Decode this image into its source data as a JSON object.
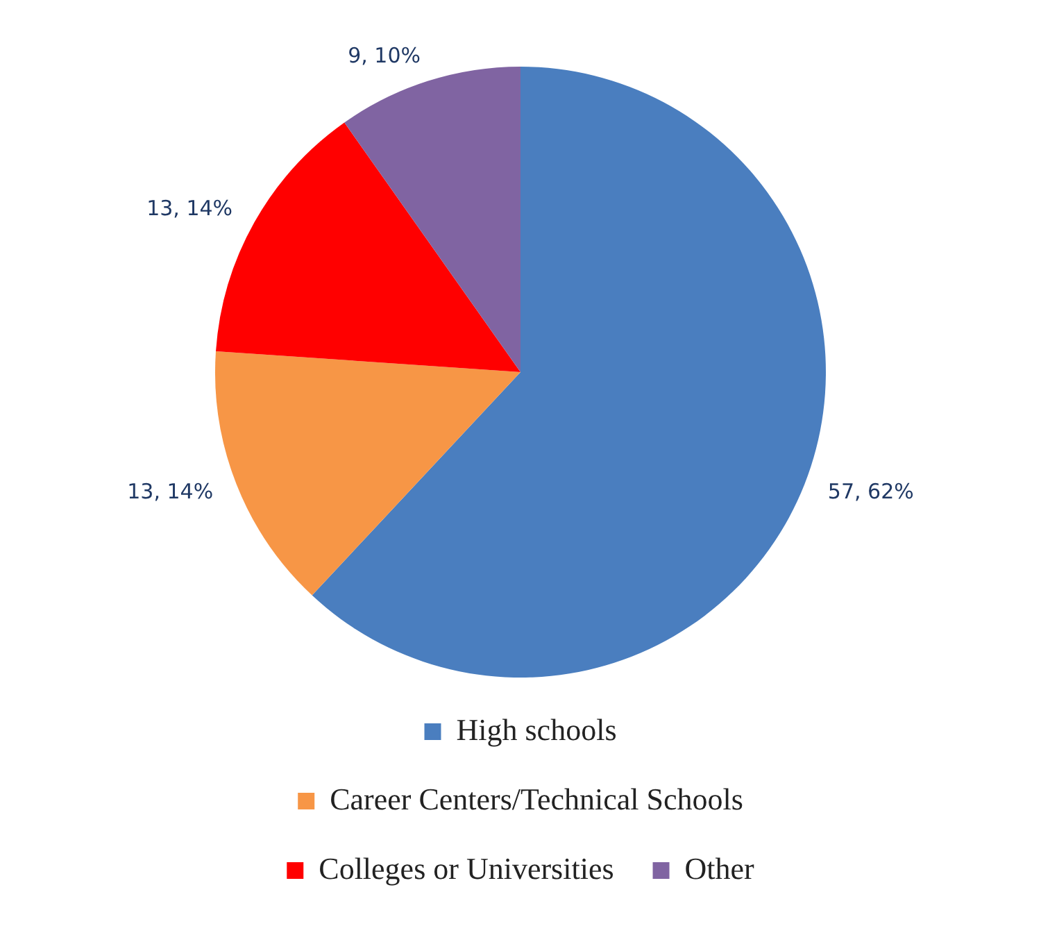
{
  "chart_data": {
    "type": "pie",
    "categories": [
      "High schools",
      "Career Centers/Technical Schools",
      "Colleges or Universities",
      "Other"
    ],
    "values": [
      57,
      13,
      13,
      9
    ],
    "colors": [
      "#4a7ebf",
      "#f79646",
      "#ff0000",
      "#8064a2"
    ],
    "value_labels": [
      "57, 62%",
      "13, 14%",
      "13, 14%",
      "9, 10%"
    ],
    "legend": "bottom"
  }
}
